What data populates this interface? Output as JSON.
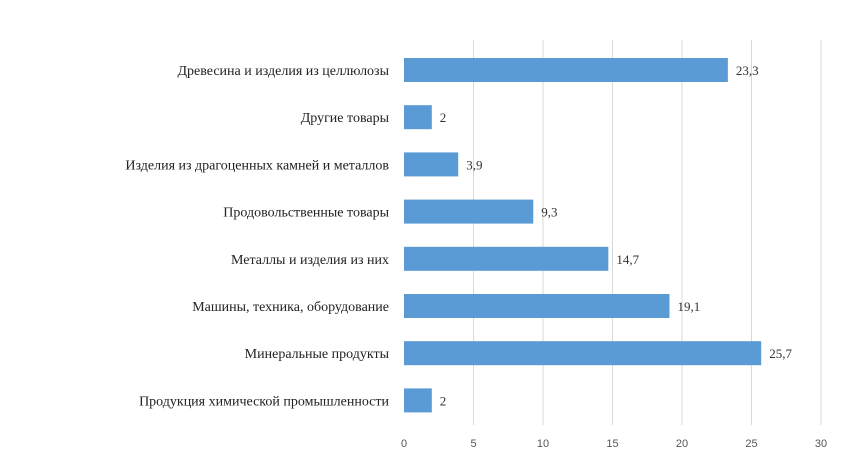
{
  "chart_data": {
    "type": "bar",
    "orientation": "horizontal",
    "categories": [
      "Древесина и изделия из целлюлозы",
      "Другие товары",
      "Изделия из драгоценных камней и металлов",
      "Продовольственные товары",
      "Металлы и изделия из них",
      "Машины, техника, оборудование",
      "Минеральные продукты",
      "Продукция химической промышленности"
    ],
    "values": [
      23.3,
      2,
      3.9,
      9.3,
      14.7,
      19.1,
      25.7,
      2
    ],
    "value_labels": [
      "23,3",
      "2",
      "3,9",
      "9,3",
      "14,7",
      "19,1",
      "25,7",
      "2"
    ],
    "xlim": [
      0,
      30
    ],
    "x_ticks": [
      "0",
      "5",
      "10",
      "15",
      "20",
      "25",
      "30"
    ],
    "grid": "vertical",
    "colors": {
      "bar": "#5b9bd5",
      "grid": "#d9d9d9"
    }
  }
}
